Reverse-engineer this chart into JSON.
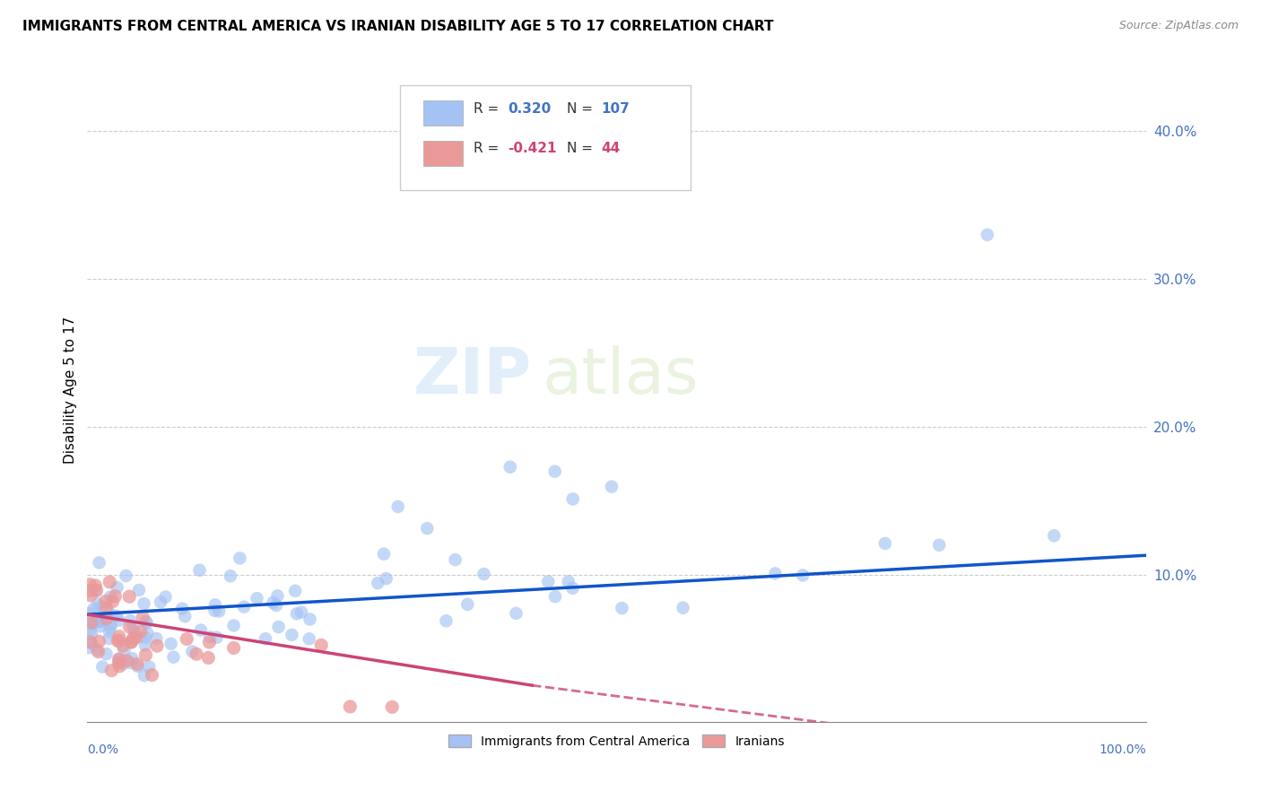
{
  "title": "IMMIGRANTS FROM CENTRAL AMERICA VS IRANIAN DISABILITY AGE 5 TO 17 CORRELATION CHART",
  "source": "Source: ZipAtlas.com",
  "ylabel": "Disability Age 5 to 17",
  "watermark_zip": "ZIP",
  "watermark_atlas": "atlas",
  "legend_label_blue": "Immigrants from Central America",
  "legend_label_pink": "Iranians",
  "R_blue": "0.320",
  "N_blue": "107",
  "R_pink": "-0.421",
  "N_pink": "44",
  "blue_color": "#a4c2f4",
  "pink_color": "#ea9999",
  "blue_line_color": "#1155cc",
  "pink_line_color": "#cc4477",
  "background_color": "#ffffff",
  "grid_color": "#cccccc"
}
